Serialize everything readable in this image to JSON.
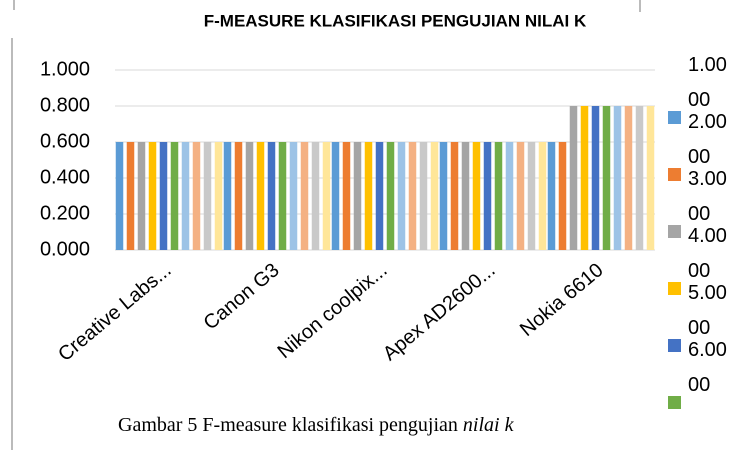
{
  "chart_data": {
    "type": "bar",
    "title": "F-MEASURE KLASIFIKASI PENGUJIAN NILAI K",
    "categories": [
      "Creative Labs...",
      "Canon G3",
      "Nikon coolpix...",
      "Apex AD2600...",
      "Nokia 6610"
    ],
    "series": [
      {
        "name": "1.0000",
        "color": "#5b9bd5",
        "values": [
          0.6,
          0.6,
          0.6,
          0.6,
          0.6
        ]
      },
      {
        "name": "2.0000",
        "color": "#ed7d31",
        "values": [
          0.6,
          0.6,
          0.6,
          0.6,
          0.6
        ]
      },
      {
        "name": "3.0000",
        "color": "#a5a5a5",
        "values": [
          0.6,
          0.6,
          0.6,
          0.6,
          0.8
        ]
      },
      {
        "name": "4.0000",
        "color": "#ffc000",
        "values": [
          0.6,
          0.6,
          0.6,
          0.6,
          0.8
        ]
      },
      {
        "name": "5.0000",
        "color": "#4472c4",
        "values": [
          0.6,
          0.6,
          0.6,
          0.6,
          0.8
        ]
      },
      {
        "name": "6.0000",
        "color": "#70ad47",
        "values": [
          0.6,
          0.6,
          0.6,
          0.6,
          0.8
        ]
      },
      {
        "color": "#9dc3e6",
        "values": [
          0.6,
          0.6,
          0.6,
          0.6,
          0.8
        ]
      },
      {
        "color": "#f4b183",
        "values": [
          0.6,
          0.6,
          0.6,
          0.6,
          0.8
        ]
      },
      {
        "color": "#c9c9c9",
        "values": [
          0.6,
          0.6,
          0.6,
          0.6,
          0.8
        ]
      },
      {
        "color": "#ffe699",
        "values": [
          0.6,
          0.6,
          0.6,
          0.6,
          0.8
        ]
      }
    ],
    "ylim": [
      0,
      1
    ],
    "yticks": [
      {
        "value": 0,
        "label": "0.000"
      },
      {
        "value": 0.2,
        "label": "0.200"
      },
      {
        "value": 0.4,
        "label": "0.400"
      },
      {
        "value": 0.6,
        "label": "0.600"
      },
      {
        "value": 0.8,
        "label": "0.800"
      },
      {
        "value": 1,
        "label": "1.000"
      }
    ],
    "grid": true
  },
  "caption": {
    "text": "Gambar 5 F-measure klasifikasi pengujian ",
    "italic": "nilai k"
  }
}
